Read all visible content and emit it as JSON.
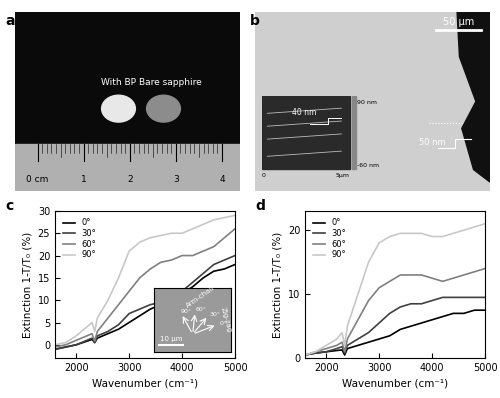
{
  "chart_data": [
    {
      "type": "line",
      "panel_label": "c",
      "x_label": "Wavenumber (cm⁻¹)",
      "y_label": "Extinction 1-T/T₀ (%)",
      "x": [
        1600,
        1800,
        2000,
        2200,
        2300,
        2350,
        2400,
        2600,
        2800,
        3000,
        3200,
        3400,
        3600,
        3800,
        4000,
        4200,
        4400,
        4600,
        4800,
        5000
      ],
      "series": [
        {
          "name": "0°",
          "color": "#000000",
          "values": [
            -1,
            -0.5,
            0,
            0.8,
            1.2,
            0.5,
            1.5,
            2.5,
            3.5,
            5,
            6.5,
            8,
            9,
            10,
            11.5,
            13,
            15,
            16.5,
            17,
            18
          ]
        },
        {
          "name": "30°",
          "color": "#404040",
          "values": [
            -1,
            -0.5,
            0,
            1,
            1.5,
            0.5,
            2,
            3,
            4.5,
            7,
            8,
            9,
            9.5,
            10.5,
            12,
            14,
            16,
            18,
            19,
            20
          ]
        },
        {
          "name": "60°",
          "color": "#808080",
          "values": [
            -0.5,
            0,
            1,
            2,
            2.5,
            0.8,
            3,
            6,
            9,
            12,
            15,
            17,
            18.5,
            19,
            20,
            20,
            21,
            22,
            24,
            26
          ]
        },
        {
          "name": "90°",
          "color": "#c8c8c8",
          "values": [
            0,
            0.5,
            2,
            4,
            5,
            3,
            6,
            10,
            15,
            21,
            23,
            24,
            24.5,
            25,
            25,
            26,
            27,
            28,
            28.5,
            29
          ]
        }
      ],
      "xlim": [
        1600,
        5000
      ],
      "xticks": [
        2000,
        3000,
        4000,
        5000
      ],
      "ylim": [
        -3,
        30
      ],
      "yticks": [
        0,
        5,
        10,
        15,
        20,
        25,
        30
      ],
      "legend": "upper left",
      "inset": {
        "scale_bar": "10 μm",
        "directions": [
          "Arm-chair",
          "Zig-zag"
        ],
        "angles": [
          "90°",
          "60°",
          "30°",
          "0°"
        ]
      }
    },
    {
      "type": "line",
      "panel_label": "d",
      "x_label": "Wavenumber (cm⁻¹)",
      "y_label": "Extinction 1-T/T₀ (%)",
      "x": [
        1600,
        1800,
        2000,
        2200,
        2300,
        2350,
        2400,
        2600,
        2800,
        3000,
        3200,
        3400,
        3600,
        3800,
        4000,
        4200,
        4400,
        4600,
        4800,
        5000
      ],
      "series": [
        {
          "name": "0°",
          "color": "#000000",
          "values": [
            0.5,
            0.8,
            1,
            1.2,
            1.3,
            0.5,
            1.5,
            2,
            2.5,
            3,
            3.5,
            4.5,
            5,
            5.5,
            6,
            6.5,
            7,
            7,
            7.5,
            7.5
          ]
        },
        {
          "name": "30°",
          "color": "#404040",
          "values": [
            0.5,
            0.8,
            1,
            1.5,
            1.8,
            0.8,
            2,
            3,
            4,
            5.5,
            7,
            8,
            8.5,
            8.5,
            9,
            9.5,
            9.5,
            9.5,
            9.5,
            9.5
          ]
        },
        {
          "name": "60°",
          "color": "#808080",
          "values": [
            0.5,
            1,
            1.5,
            2,
            2.5,
            1,
            3,
            6,
            9,
            11,
            12,
            13,
            13,
            13,
            12.5,
            12,
            12.5,
            13,
            13.5,
            14
          ]
        },
        {
          "name": "90°",
          "color": "#c8c8c8",
          "values": [
            0.5,
            1,
            2,
            3,
            4,
            2,
            5,
            10,
            15,
            18,
            19,
            19.5,
            19.5,
            19.5,
            19,
            19,
            19.5,
            20,
            20.5,
            21
          ]
        }
      ],
      "xlim": [
        1600,
        5000
      ],
      "xticks": [
        2000,
        3000,
        4000,
        5000
      ],
      "ylim": [
        0,
        23
      ],
      "yticks": [
        0,
        10,
        20
      ],
      "legend": "upper left"
    }
  ],
  "photo_a": {
    "panel_label": "a",
    "labels": [
      "With BP",
      "Bare sapphire"
    ],
    "ruler": [
      "0 cm",
      "1",
      "2",
      "3",
      "4"
    ]
  },
  "photo_b": {
    "panel_label": "b",
    "scale_bar": "50 μm",
    "step": "50 nm",
    "inset_step": "40 nm",
    "inset_colorbar": [
      "90 nm",
      "-60 nm"
    ],
    "inset_axis": [
      "0",
      "5μm"
    ]
  }
}
